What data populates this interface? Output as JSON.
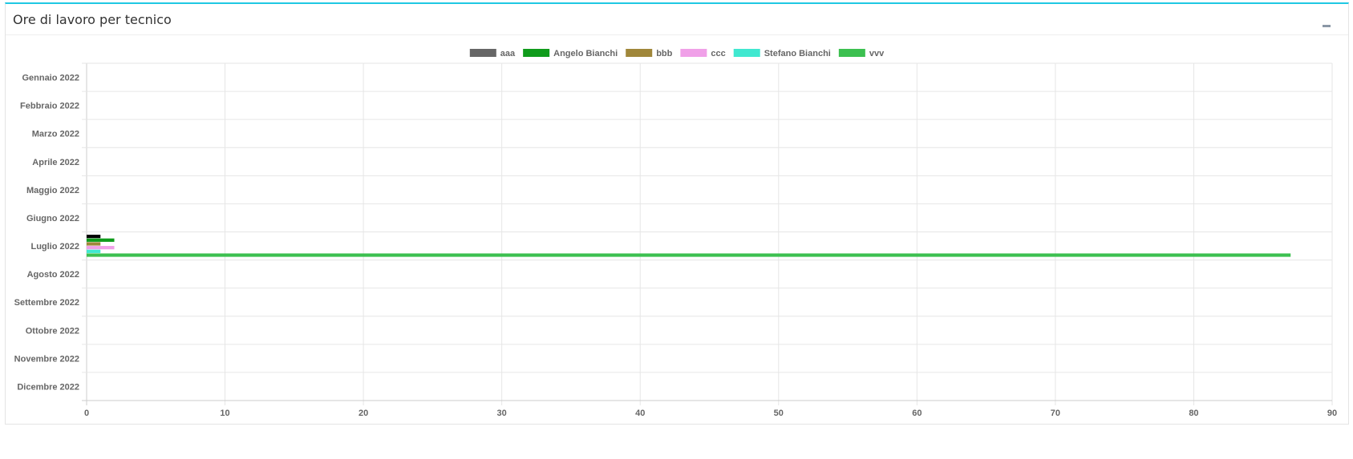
{
  "panel": {
    "title": "Ore di lavoro per tecnico",
    "collapse_icon": "minus-icon",
    "accent": "#1fc8e3"
  },
  "chart_data": {
    "type": "bar",
    "orientation": "horizontal",
    "categories": [
      "Gennaio 2022",
      "Febbraio 2022",
      "Marzo 2022",
      "Aprile 2022",
      "Maggio 2022",
      "Giugno 2022",
      "Luglio 2022",
      "Agosto 2022",
      "Settembre 2022",
      "Ottobre 2022",
      "Novembre 2022",
      "Dicembre 2022"
    ],
    "series": [
      {
        "name": "aaa",
        "color": "#666666",
        "bar_color": "#000000",
        "values": [
          0,
          0,
          0,
          0,
          0,
          0,
          1,
          0,
          0,
          0,
          0,
          0
        ]
      },
      {
        "name": "Angelo Bianchi",
        "color": "#0f9b1b",
        "values": [
          0,
          0,
          0,
          0,
          0,
          0,
          2,
          0,
          0,
          0,
          0,
          0
        ]
      },
      {
        "name": "bbb",
        "color": "#a0873a",
        "values": [
          0,
          0,
          0,
          0,
          0,
          0,
          1,
          0,
          0,
          0,
          0,
          0
        ]
      },
      {
        "name": "ccc",
        "color": "#f0a0e8",
        "values": [
          0,
          0,
          0,
          0,
          0,
          0,
          2,
          0,
          0,
          0,
          0,
          0
        ]
      },
      {
        "name": "Stefano Bianchi",
        "color": "#40e8d0",
        "values": [
          0,
          0,
          0,
          0,
          0,
          0,
          1,
          0,
          0,
          0,
          0,
          0
        ]
      },
      {
        "name": "vvv",
        "color": "#3cc050",
        "values": [
          0,
          0,
          0,
          0,
          0,
          0,
          87,
          0,
          0,
          0,
          0,
          0
        ]
      }
    ],
    "xlim": [
      0,
      90
    ],
    "xticks": [
      0,
      10,
      20,
      30,
      40,
      50,
      60,
      70,
      80,
      90
    ],
    "grid": true,
    "legend": "top",
    "title": "",
    "xlabel": "",
    "ylabel": ""
  }
}
